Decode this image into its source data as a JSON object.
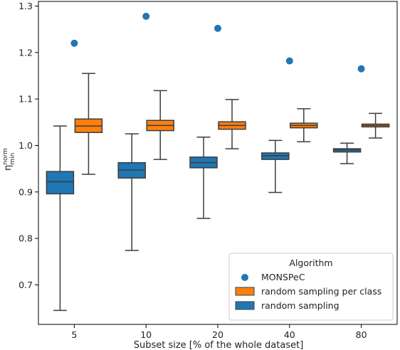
{
  "chart_data": {
    "type": "box",
    "xlabel": "Subset size [% of the whole dataset]",
    "ylabel": "η_min^norm",
    "ylabel_main": "η",
    "ylabel_sup": "norm",
    "ylabel_sub": "min",
    "categories": [
      "5",
      "10",
      "20",
      "40",
      "80"
    ],
    "ylim": [
      0.615,
      1.31
    ],
    "yticks": [
      "0.7",
      "0.8",
      "0.9",
      "1.0",
      "1.1",
      "1.2",
      "1.3"
    ],
    "grid": false,
    "legend": {
      "title": "Algorithm",
      "placement": "lower-right",
      "entries": [
        "MONSPeC",
        "random sampling per class",
        "random sampling"
      ]
    },
    "colors": {
      "monspec": "#1f77b4",
      "random_per_class": "#ff7f0e",
      "random": "#1f77b4"
    },
    "series": [
      {
        "name": "MONSPeC",
        "kind": "point",
        "values": [
          1.22,
          1.278,
          1.252,
          1.182,
          1.165
        ]
      },
      {
        "name": "random sampling per class",
        "kind": "box",
        "boxes": [
          {
            "whislo": 0.938,
            "q1": 1.028,
            "med": 1.042,
            "q3": 1.057,
            "whishi": 1.155
          },
          {
            "whislo": 0.97,
            "q1": 1.032,
            "med": 1.043,
            "q3": 1.054,
            "whishi": 1.118
          },
          {
            "whislo": 0.993,
            "q1": 1.035,
            "med": 1.043,
            "q3": 1.051,
            "whishi": 1.099
          },
          {
            "whislo": 1.008,
            "q1": 1.038,
            "med": 1.043,
            "q3": 1.048,
            "whishi": 1.079
          },
          {
            "whislo": 1.016,
            "q1": 1.04,
            "med": 1.043,
            "q3": 1.046,
            "whishi": 1.069
          }
        ]
      },
      {
        "name": "random sampling",
        "kind": "box",
        "boxes": [
          {
            "whislo": 0.645,
            "q1": 0.896,
            "med": 0.922,
            "q3": 0.944,
            "whishi": 1.042
          },
          {
            "whislo": 0.774,
            "q1": 0.93,
            "med": 0.947,
            "q3": 0.963,
            "whishi": 1.025
          },
          {
            "whislo": 0.843,
            "q1": 0.952,
            "med": 0.963,
            "q3": 0.975,
            "whishi": 1.018
          },
          {
            "whislo": 0.899,
            "q1": 0.97,
            "med": 0.978,
            "q3": 0.984,
            "whishi": 1.011
          },
          {
            "whislo": 0.961,
            "q1": 0.986,
            "med": 0.99,
            "q3": 0.993,
            "whishi": 1.005
          }
        ]
      }
    ]
  }
}
